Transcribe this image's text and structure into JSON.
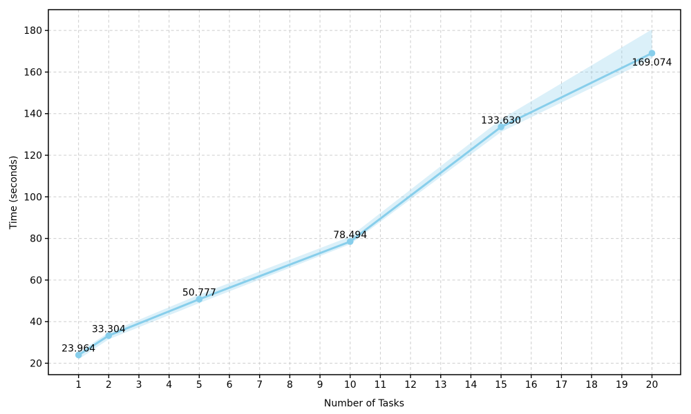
{
  "chart_data": {
    "type": "line",
    "title": "",
    "xlabel": "Number of Tasks",
    "ylabel": "Time (seconds)",
    "x": [
      1,
      2,
      5,
      10,
      15,
      20
    ],
    "values": [
      23.964,
      33.304,
      50.777,
      78.494,
      133.63,
      169.074
    ],
    "point_labels": [
      "23.964",
      "33.304",
      "50.777",
      "78.494",
      "133.630",
      "169.074"
    ],
    "band_lower": [
      21.9,
      31.5,
      48.9,
      77.2,
      131.2,
      166.5
    ],
    "band_upper": [
      25.2,
      34.8,
      53.0,
      80.9,
      137.3,
      180.5
    ],
    "x_ticks": [
      1,
      2,
      3,
      4,
      5,
      6,
      7,
      8,
      9,
      10,
      11,
      12,
      13,
      14,
      15,
      16,
      17,
      18,
      19,
      20
    ],
    "y_ticks": [
      20,
      40,
      60,
      80,
      100,
      120,
      140,
      160,
      180
    ],
    "xlim": [
      0,
      20.95
    ],
    "ylim": [
      14.5,
      190
    ],
    "grid": true,
    "grid_linestyle": "dashed",
    "legend_position": "none",
    "band_opacity": 0.3,
    "colors": {
      "line": "#87CEEB",
      "marker": "#87CEEB",
      "band": "#87CEEB",
      "grid": "#cccccc",
      "axis": "#000000",
      "text": "#000000",
      "background": "#ffffff"
    }
  }
}
